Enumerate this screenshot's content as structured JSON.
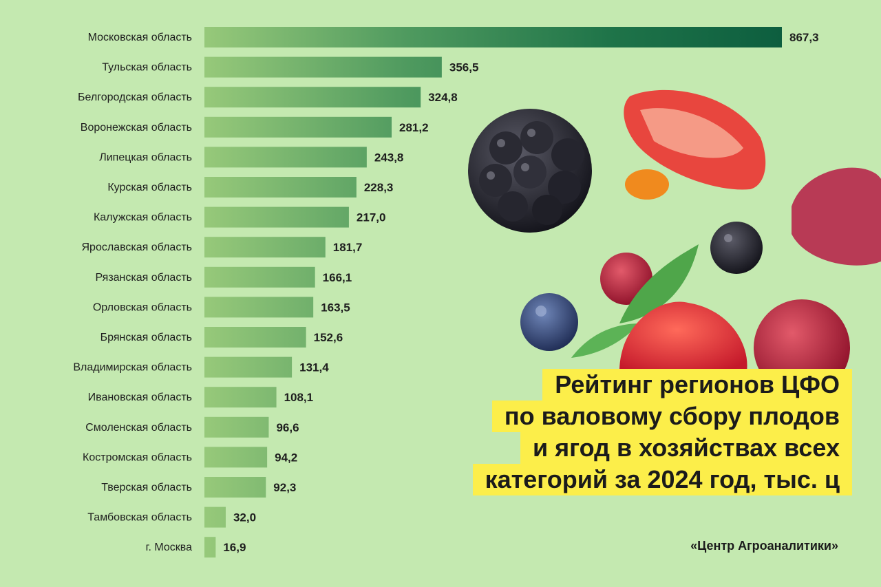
{
  "title_lines": [
    "Рейтинг регионов ЦФО",
    "по валовому сбору плодов",
    "и ягод в хозяйствах всех",
    "категорий за 2024 год, тыс. ц"
  ],
  "source": "«Центр Агроаналитики»",
  "colors": {
    "background": "#c4e9b0",
    "bar_light": "#97c97a",
    "bar_dark": "#0d5e3f",
    "title_highlight": "#fcee4a"
  },
  "chart_data": {
    "type": "bar",
    "orientation": "horizontal",
    "categories": [
      "Московская область",
      "Тульская область",
      "Белгородская область",
      "Воронежская область",
      "Липецкая область",
      "Курская область",
      "Калужская область",
      "Ярославская область",
      "Рязанская область",
      "Орловская область",
      "Брянская область",
      "Владимирская область",
      "Ивановская область",
      "Смоленская область",
      "Костромская область",
      "Тверская область",
      "Тамбовская область",
      "г. Москва"
    ],
    "values": [
      867.3,
      356.5,
      324.8,
      281.2,
      243.8,
      228.3,
      217.0,
      181.7,
      166.1,
      163.5,
      152.6,
      131.4,
      108.1,
      96.6,
      94.2,
      92.3,
      32.0,
      16.9
    ],
    "value_labels": [
      "867,3",
      "356,5",
      "324,8",
      "281,2",
      "243,8",
      "228,3",
      "217,0",
      "181,7",
      "166,1",
      "163,5",
      "152,6",
      "131,4",
      "108,1",
      "96,6",
      "94,2",
      "92,3",
      "32,0",
      "16,9"
    ],
    "title": "Рейтинг регионов ЦФО по валовому сбору плодов и ягод в хозяйствах всех категорий за 2024 год, тыс. ц",
    "xlabel": "",
    "ylabel": "",
    "xlim": [
      0,
      867.3
    ],
    "grid": false,
    "legend": "none"
  },
  "decorations": [
    "blackberry",
    "strawberry",
    "sea-buckthorn",
    "blackcurrant",
    "blueberry",
    "cranberry",
    "cherry",
    "leaf"
  ]
}
